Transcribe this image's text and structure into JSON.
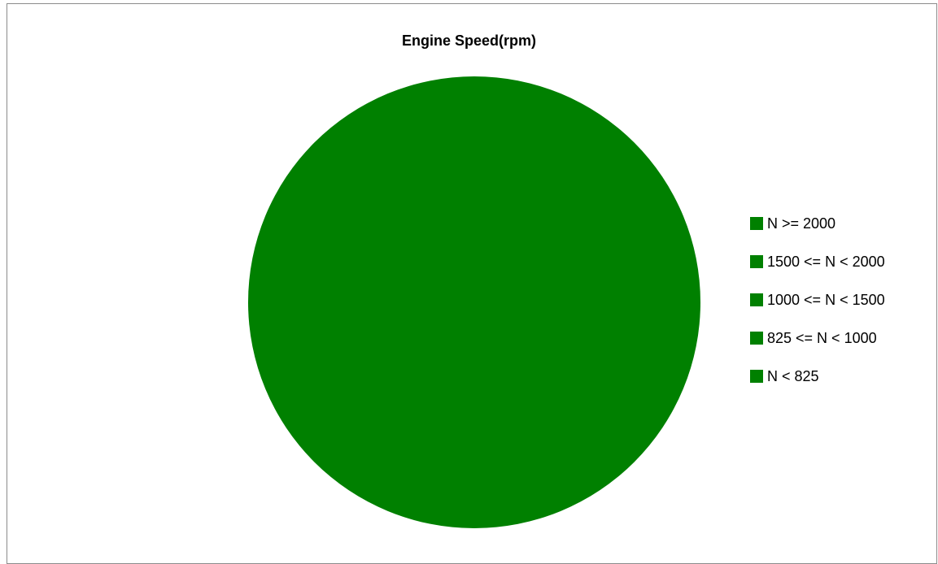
{
  "chart_data": {
    "type": "pie",
    "title": "Engine Speed(rpm)",
    "categories": [
      "N >= 2000",
      "1500 <= N < 2000",
      "1000 <= N < 1500",
      "825 <= N < 1000",
      "N < 825"
    ],
    "values": [
      0,
      0,
      0,
      0,
      100
    ],
    "colors": [
      "#008000",
      "#008000",
      "#008000",
      "#008000",
      "#008000"
    ],
    "legend_position": "right"
  }
}
